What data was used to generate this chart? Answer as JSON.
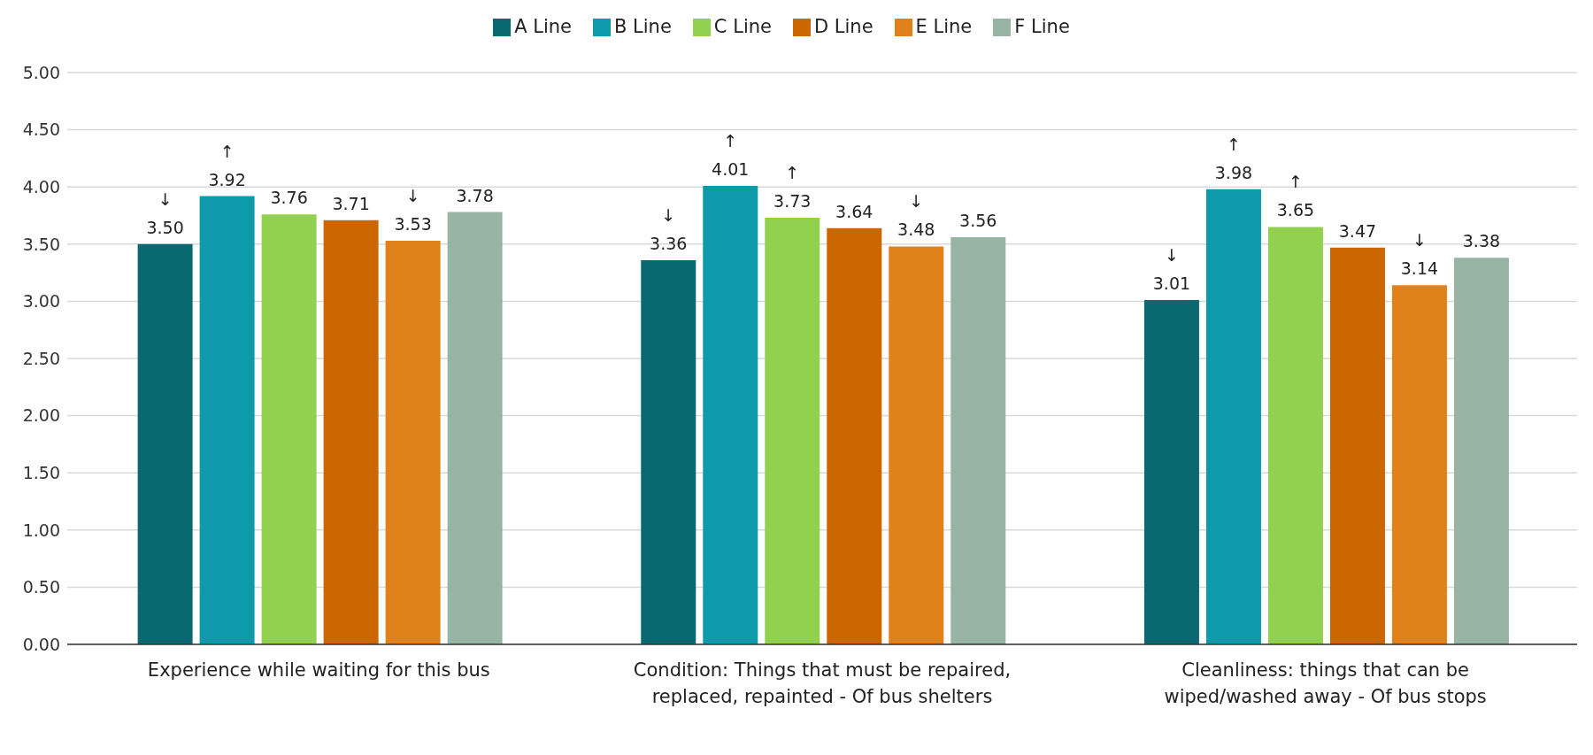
{
  "chart_data": {
    "type": "bar",
    "categories": [
      "Experience while waiting for this bus",
      "Condition: Things that must be repaired, replaced, repainted - Of bus shelters",
      "Cleanliness: things that can be wiped/washed away - Of bus stops"
    ],
    "series": [
      {
        "name": "A Line",
        "color": "#0a6870",
        "values": [
          3.5,
          3.36,
          3.01
        ],
        "value_labels": [
          "↓\n3.50",
          "↓\n3.36",
          "↓\n3.01"
        ]
      },
      {
        "name": "B Line",
        "color": "#0e9aab",
        "values": [
          3.92,
          4.01,
          3.98
        ],
        "value_labels": [
          "↑\n3.92",
          "↑\n4.01",
          "↑\n3.98"
        ]
      },
      {
        "name": "C Line",
        "color": "#92d050",
        "values": [
          3.76,
          3.73,
          3.65
        ],
        "value_labels": [
          "3.76",
          "↑\n3.73",
          "↑\n3.65"
        ]
      },
      {
        "name": "D Line",
        "color": "#cc6600",
        "values": [
          3.71,
          3.64,
          3.47
        ],
        "value_labels": [
          "3.71",
          "3.64",
          "3.47"
        ]
      },
      {
        "name": "E Line",
        "color": "#e0811a",
        "values": [
          3.53,
          3.48,
          3.14
        ],
        "value_labels": [
          "↓\n3.53",
          "↓\n3.48",
          "↓\n3.14"
        ]
      },
      {
        "name": "F Line",
        "color": "#98b4a4",
        "values": [
          3.78,
          3.56,
          3.38
        ],
        "value_labels": [
          "3.78",
          "3.56",
          "3.38"
        ]
      }
    ],
    "ylim": [
      0,
      5
    ],
    "yticks": [
      {
        "value": 0,
        "label": "0.00"
      },
      {
        "value": 0.5,
        "label": "0.50"
      },
      {
        "value": 1,
        "label": "1.00"
      },
      {
        "value": 1.5,
        "label": "1.50"
      },
      {
        "value": 2,
        "label": "2.00"
      },
      {
        "value": 2.5,
        "label": "2.50"
      },
      {
        "value": 3,
        "label": "3.00"
      },
      {
        "value": 3.5,
        "label": "3.50"
      },
      {
        "value": 4,
        "label": "4.00"
      },
      {
        "value": 4.5,
        "label": "4.50"
      },
      {
        "value": 5,
        "label": "5.00"
      }
    ],
    "grid": "y",
    "legend": "top"
  }
}
